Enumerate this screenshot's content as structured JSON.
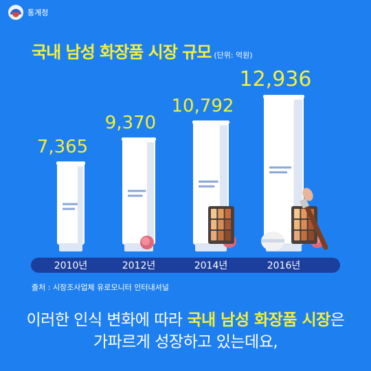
{
  "header": {
    "logo_text": "통계청",
    "logo_icon": "government-emblem-icon"
  },
  "title": {
    "main": "국내 남성 화장품 시장 규모",
    "unit": "(단위: 억원)"
  },
  "chart_data": {
    "type": "bar",
    "title": "국내 남성 화장품 시장 규모",
    "unit": "단위: 억원",
    "categories": [
      "2010년",
      "2012년",
      "2014년",
      "2016년"
    ],
    "values": [
      7365,
      9370,
      10792,
      12936
    ],
    "value_labels": [
      "7,365",
      "9,370",
      "10,792",
      "12,936"
    ],
    "bar_style": "cosmetic-tubes",
    "decorations": [
      "compact-powder-icon",
      "eyeshadow-palette-icon",
      "makeup-brush-icon",
      "powder-puff-icon"
    ]
  },
  "source": "출처 : 시장조사업체 유로모니터 인터내셔널",
  "bottom_text": {
    "line1_before": "이러한 인식 변화에 따라 ",
    "line1_highlight": "국내 남성 화장품 시장",
    "line1_after": "은",
    "line2": "가파르게 성장하고 있는데요,"
  },
  "colors": {
    "background": "#1e7ff0",
    "highlight": "#f6f03a",
    "axis_band": "#1c3e9c",
    "tube": "#ffffff",
    "tube_shade": "#dfe6f3",
    "tube_stripe": "#8aa6d8",
    "compact": "#e0677a"
  }
}
